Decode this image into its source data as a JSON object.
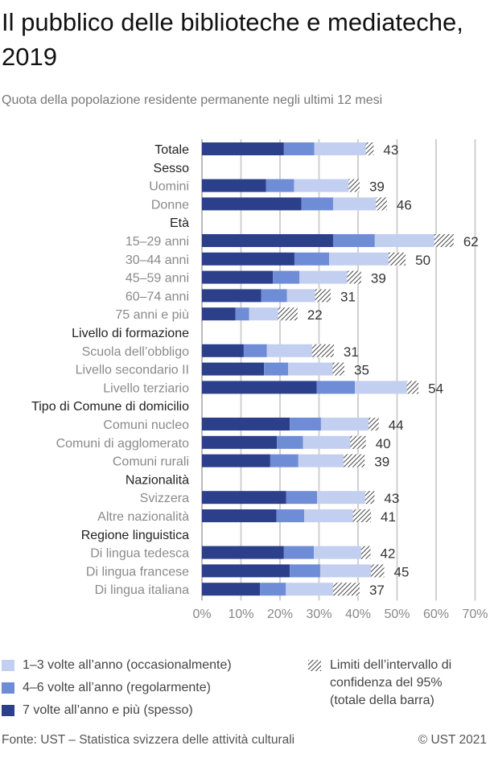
{
  "title": "Il pubblico delle biblioteche e mediateche, 2019",
  "subtitle": "Quota della popolazione residente permanente negli ultimi 12 mesi",
  "footer": {
    "source": "Fonte: UST – Statistica svizzera delle attività culturali",
    "copyright": "© UST 2021"
  },
  "colors": {
    "spesso": "#2b3f8a",
    "regolarmente": "#6f8cd6",
    "occasionalmente": "#c3cff0",
    "grid": "#d0d0d0"
  },
  "legend": {
    "occasionalmente": "1–3 volte all’anno (occasionalmente)",
    "regolarmente": "4–6 volte all’anno (regolarmente)",
    "spesso": "7 volte all’anno e più (spesso)",
    "ci": "Limiti dell’intervallo di confidenza del 95% (totale della barra)",
    "ci_lines": [
      "Limiti dell’intervallo di",
      "confidenza del 95%",
      "(totale della barra)"
    ]
  },
  "chart_data": {
    "type": "bar",
    "orientation": "horizontal",
    "stacked": true,
    "xlim": [
      0,
      70
    ],
    "xticks": [
      "0%",
      "10%",
      "20%",
      "30%",
      "40%",
      "50%",
      "60%",
      "70%"
    ],
    "grid": true,
    "series_names": [
      "7 volte all’anno e più (spesso)",
      "4–6 volte all’anno (regolarmente)",
      "1–3 volte all’anno (occasionalmente)"
    ],
    "rows": [
      {
        "label": "Totale",
        "type": "bar",
        "bold": true,
        "spesso": 21.0,
        "regolarmente": 7.8,
        "occasionalmente": 14.2,
        "total": 43,
        "ci": 1.0
      },
      {
        "label": "Sesso",
        "type": "header"
      },
      {
        "label": "Uomini",
        "type": "bar",
        "spesso": 16.4,
        "regolarmente": 7.2,
        "occasionalmente": 15.4,
        "total": 39,
        "ci": 1.4
      },
      {
        "label": "Donne",
        "type": "bar",
        "spesso": 25.5,
        "regolarmente": 8.1,
        "occasionalmente": 12.4,
        "total": 46,
        "ci": 1.4
      },
      {
        "label": "Età",
        "type": "header"
      },
      {
        "label": "15–29 anni",
        "type": "bar",
        "spesso": 33.6,
        "regolarmente": 10.7,
        "occasionalmente": 17.7,
        "total": 62,
        "ci": 2.5
      },
      {
        "label": "30–44 anni",
        "type": "bar",
        "spesso": 23.7,
        "regolarmente": 8.9,
        "occasionalmente": 17.4,
        "total": 50,
        "ci": 2.2
      },
      {
        "label": "45–59 anni",
        "type": "bar",
        "spesso": 18.2,
        "regolarmente": 6.8,
        "occasionalmente": 14.0,
        "total": 39,
        "ci": 1.8
      },
      {
        "label": "60–74 anni",
        "type": "bar",
        "spesso": 15.2,
        "regolarmente": 6.6,
        "occasionalmente": 9.2,
        "total": 31,
        "ci": 2.0
      },
      {
        "label": "75 anni e più",
        "type": "bar",
        "spesso": 8.6,
        "regolarmente": 3.5,
        "occasionalmente": 9.9,
        "total": 22,
        "ci": 2.5
      },
      {
        "label": "Livello di formazione",
        "type": "header"
      },
      {
        "label": "Scuola dell’obbligo",
        "type": "bar",
        "spesso": 10.7,
        "regolarmente": 5.9,
        "occasionalmente": 14.4,
        "total": 31,
        "ci": 2.8
      },
      {
        "label": "Livello secondario II",
        "type": "bar",
        "spesso": 15.9,
        "regolarmente": 6.2,
        "occasionalmente": 12.9,
        "total": 35,
        "ci": 1.5
      },
      {
        "label": "Livello terziario",
        "type": "bar",
        "spesso": 29.4,
        "regolarmente": 9.8,
        "occasionalmente": 14.8,
        "total": 54,
        "ci": 1.5
      },
      {
        "label": "Tipo di Comune di domicilio",
        "type": "header"
      },
      {
        "label": "Comuni nucleo",
        "type": "bar",
        "spesso": 22.5,
        "regolarmente": 8.0,
        "occasionalmente": 13.5,
        "total": 44,
        "ci": 1.3
      },
      {
        "label": "Comuni di agglomerato",
        "type": "bar",
        "spesso": 19.2,
        "regolarmente": 6.7,
        "occasionalmente": 14.1,
        "total": 40,
        "ci": 2.0
      },
      {
        "label": "Comuni rurali",
        "type": "bar",
        "spesso": 17.5,
        "regolarmente": 7.2,
        "occasionalmente": 14.3,
        "total": 39,
        "ci": 2.7
      },
      {
        "label": "Nazionalità",
        "type": "header"
      },
      {
        "label": "Svizzera",
        "type": "bar",
        "spesso": 21.6,
        "regolarmente": 7.9,
        "occasionalmente": 13.5,
        "total": 43,
        "ci": 1.2
      },
      {
        "label": "Altre nazionalità",
        "type": "bar",
        "spesso": 19.1,
        "regolarmente": 7.1,
        "occasionalmente": 14.8,
        "total": 41,
        "ci": 2.3
      },
      {
        "label": "Regione linguistica",
        "type": "header"
      },
      {
        "label": "Di lingua tedesca",
        "type": "bar",
        "spesso": 21.0,
        "regolarmente": 7.7,
        "occasionalmente": 13.3,
        "total": 42,
        "ci": 1.2
      },
      {
        "label": "Di lingua francese",
        "type": "bar",
        "spesso": 22.5,
        "regolarmente": 7.8,
        "occasionalmente": 14.7,
        "total": 45,
        "ci": 1.7
      },
      {
        "label": "Di lingua italiana",
        "type": "bar",
        "spesso": 14.9,
        "regolarmente": 6.6,
        "occasionalmente": 15.5,
        "total": 37,
        "ci": 3.4
      }
    ]
  }
}
